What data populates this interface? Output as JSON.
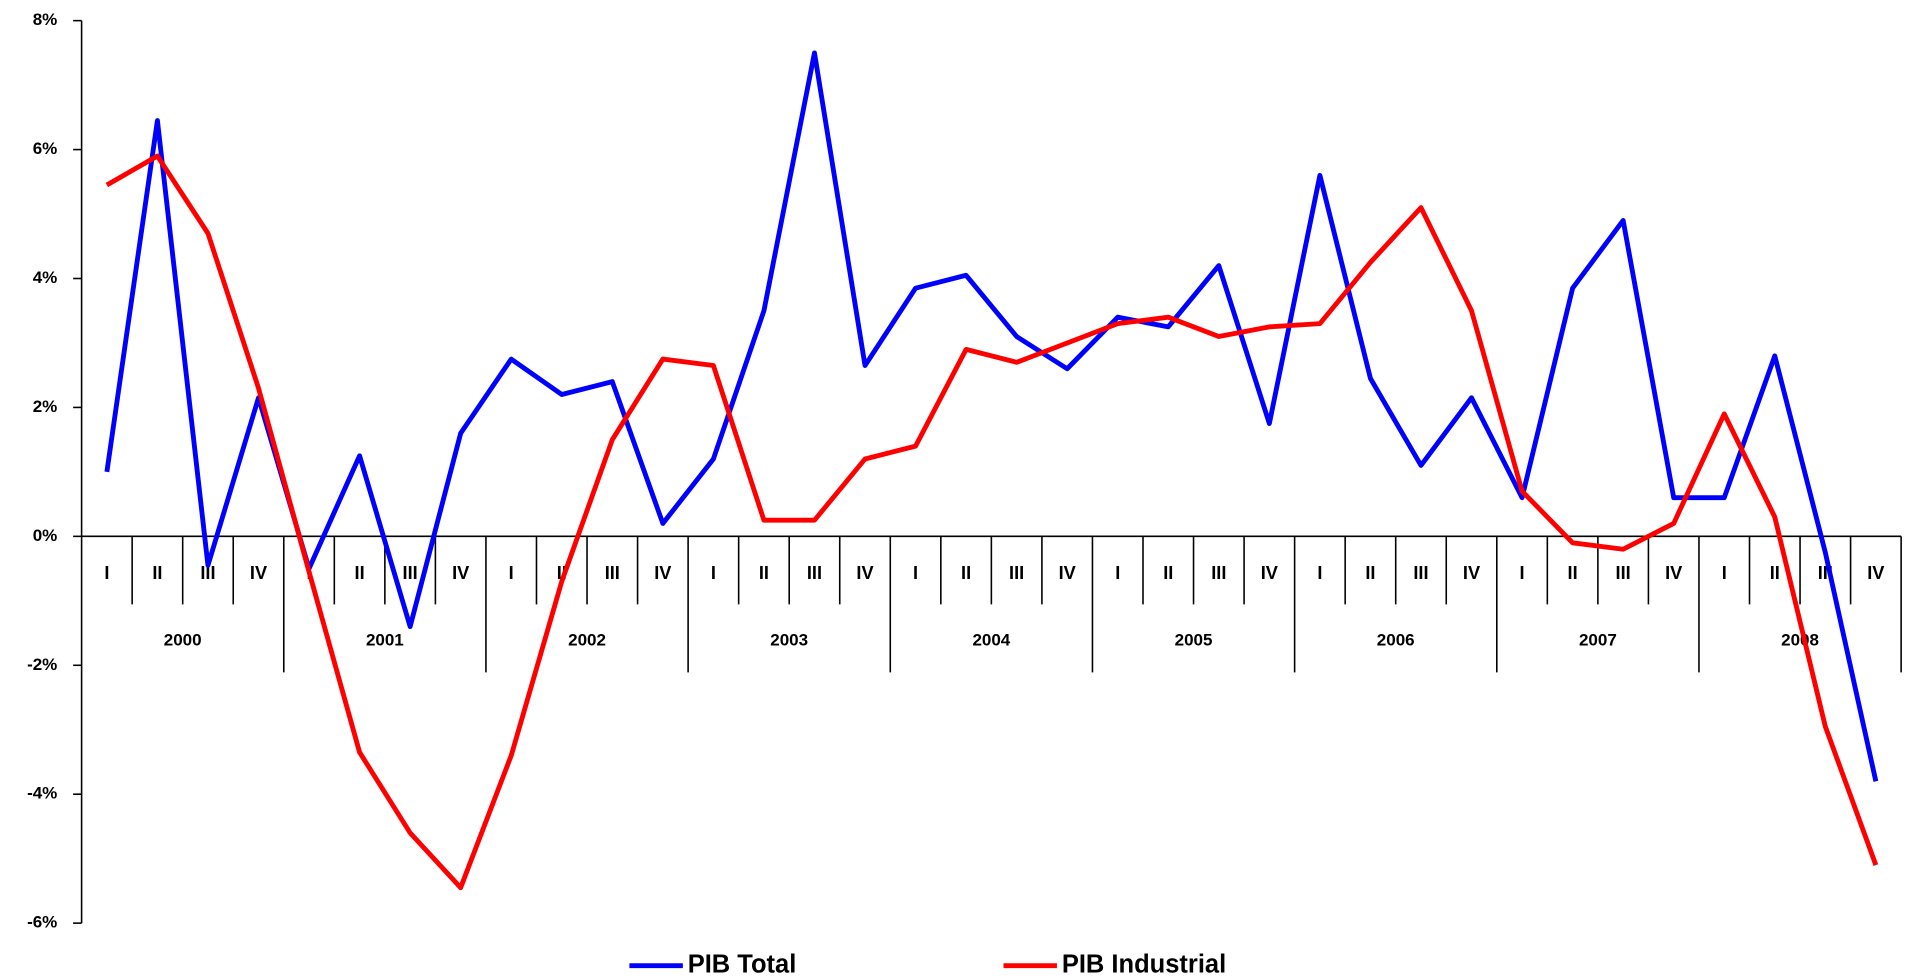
{
  "chart_data": {
    "type": "line",
    "categories": [
      "I",
      "II",
      "III",
      "IV",
      "I",
      "II",
      "III",
      "IV",
      "I",
      "II",
      "III",
      "IV",
      "I",
      "II",
      "III",
      "IV",
      "I",
      "II",
      "III",
      "IV",
      "I",
      "II",
      "III",
      "IV",
      "I",
      "II",
      "III",
      "IV",
      "I",
      "II",
      "III",
      "IV",
      "I",
      "II",
      "III",
      "IV"
    ],
    "groups": [
      "2000",
      "2001",
      "2002",
      "2003",
      "2004",
      "2005",
      "2006",
      "2007",
      "2008"
    ],
    "series": [
      {
        "name": "PIB Total",
        "color": "#0000ff",
        "values": [
          1.0,
          6.45,
          -0.45,
          2.15,
          -0.5,
          1.25,
          -1.4,
          1.6,
          2.75,
          2.2,
          2.4,
          0.2,
          1.2,
          3.5,
          7.5,
          2.65,
          3.85,
          4.05,
          3.1,
          2.6,
          3.4,
          3.25,
          4.2,
          1.75,
          5.6,
          2.45,
          1.1,
          2.15,
          0.6,
          3.85,
          4.9,
          0.6,
          0.6,
          2.8,
          -0.25,
          -3.8
        ]
      },
      {
        "name": "PIB Industrial",
        "color": "#ff0000",
        "values": [
          5.45,
          5.9,
          4.7,
          2.3,
          -0.55,
          -3.35,
          -4.6,
          -5.45,
          -3.4,
          -0.7,
          1.5,
          2.75,
          2.65,
          0.25,
          0.25,
          1.2,
          1.4,
          2.9,
          2.7,
          3.0,
          3.3,
          3.4,
          3.1,
          3.25,
          3.3,
          4.25,
          5.1,
          3.5,
          0.7,
          -0.1,
          -0.2,
          0.2,
          1.9,
          0.3,
          -2.95,
          -5.1
        ]
      }
    ],
    "ylim": [
      -6,
      8
    ],
    "yticks": [
      {
        "value": -6,
        "label": "-6%"
      },
      {
        "value": -4,
        "label": "-4%"
      },
      {
        "value": -2,
        "label": "-2%"
      },
      {
        "value": 0,
        "label": "0%"
      },
      {
        "value": 2,
        "label": "2%"
      },
      {
        "value": 4,
        "label": "4%"
      },
      {
        "value": 6,
        "label": "6%"
      },
      {
        "value": 8,
        "label": "8%"
      }
    ],
    "legend": "bottom"
  }
}
